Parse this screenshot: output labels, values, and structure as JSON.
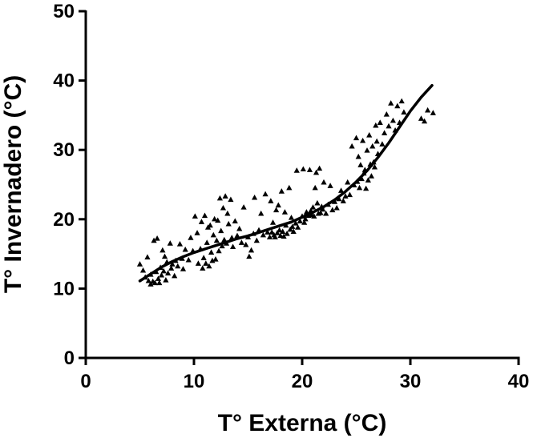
{
  "chart_data": {
    "type": "scatter",
    "title": "",
    "xlabel": "T° Externa (°C)",
    "ylabel": "T° Invernadero (°C)",
    "xlim": [
      0,
      40
    ],
    "ylim": [
      0,
      50
    ],
    "xticks": [
      "0",
      "10",
      "20",
      "30",
      "40"
    ],
    "yticks": [
      "0",
      "10",
      "20",
      "30",
      "40",
      "50"
    ],
    "grid": false,
    "legend": "none",
    "marker": "triangle",
    "marker_color": "#000000",
    "series": [
      {
        "kind": "scatter",
        "points": [
          [
            5.0,
            13.5
          ],
          [
            5.3,
            12.6
          ],
          [
            5.5,
            11.6
          ],
          [
            5.7,
            14.5
          ],
          [
            5.8,
            11.1
          ],
          [
            6.0,
            10.6
          ],
          [
            6.0,
            12.0
          ],
          [
            6.2,
            11.0
          ],
          [
            6.3,
            16.9
          ],
          [
            6.4,
            10.8
          ],
          [
            6.5,
            12.4
          ],
          [
            6.6,
            17.2
          ],
          [
            6.7,
            11.4
          ],
          [
            6.8,
            10.8
          ],
          [
            6.9,
            13.0
          ],
          [
            7.0,
            11.9
          ],
          [
            7.1,
            15.5
          ],
          [
            7.2,
            12.5
          ],
          [
            7.3,
            14.6
          ],
          [
            7.4,
            11.2
          ],
          [
            7.5,
            13.8
          ],
          [
            7.6,
            12.2
          ],
          [
            7.8,
            16.5
          ],
          [
            7.9,
            12.9
          ],
          [
            8.0,
            13.5
          ],
          [
            8.2,
            11.8
          ],
          [
            8.3,
            14.0
          ],
          [
            8.5,
            13.2
          ],
          [
            8.7,
            16.4
          ],
          [
            8.9,
            14.3
          ],
          [
            9.0,
            12.8
          ],
          [
            9.2,
            15.6
          ],
          [
            9.5,
            14.1
          ],
          [
            9.7,
            17.3
          ],
          [
            9.9,
            15.4
          ],
          [
            10.1,
            20.4
          ],
          [
            10.3,
            18.0
          ],
          [
            10.4,
            13.6
          ],
          [
            10.6,
            15.7
          ],
          [
            10.7,
            19.6
          ],
          [
            10.8,
            12.9
          ],
          [
            10.9,
            14.4
          ],
          [
            11.0,
            20.5
          ],
          [
            11.1,
            13.6
          ],
          [
            11.2,
            16.6
          ],
          [
            11.3,
            18.8
          ],
          [
            11.4,
            13.2
          ],
          [
            11.5,
            19.1
          ],
          [
            11.6,
            15.2
          ],
          [
            11.7,
            14.0
          ],
          [
            11.8,
            17.7
          ],
          [
            11.9,
            20.0
          ],
          [
            12.0,
            14.2
          ],
          [
            12.1,
            16.9
          ],
          [
            12.2,
            19.8
          ],
          [
            12.3,
            15.4
          ],
          [
            12.4,
            23.0
          ],
          [
            12.5,
            18.3
          ],
          [
            12.6,
            16.1
          ],
          [
            12.7,
            21.6
          ],
          [
            12.8,
            17.0
          ],
          [
            12.9,
            23.3
          ],
          [
            13.0,
            16.5
          ],
          [
            13.1,
            20.8
          ],
          [
            13.2,
            19.3
          ],
          [
            13.4,
            22.8
          ],
          [
            13.5,
            17.3
          ],
          [
            13.6,
            16.0
          ],
          [
            13.8,
            19.7
          ],
          [
            14.0,
            17.6
          ],
          [
            14.2,
            18.6
          ],
          [
            14.4,
            16.6
          ],
          [
            14.6,
            21.7
          ],
          [
            14.8,
            16.3
          ],
          [
            15.0,
            17.4
          ],
          [
            15.1,
            14.6
          ],
          [
            15.3,
            15.5
          ],
          [
            15.5,
            17.9
          ],
          [
            15.6,
            23.1
          ],
          [
            15.8,
            16.9
          ],
          [
            16.0,
            18.4
          ],
          [
            16.2,
            20.8
          ],
          [
            16.4,
            17.7
          ],
          [
            16.6,
            23.6
          ],
          [
            16.8,
            18.1
          ],
          [
            17.0,
            17.4
          ],
          [
            17.1,
            22.6
          ],
          [
            17.2,
            18.1
          ],
          [
            17.3,
            19.5
          ],
          [
            17.4,
            17.7
          ],
          [
            17.5,
            17.4
          ],
          [
            17.6,
            21.3
          ],
          [
            17.7,
            18.0
          ],
          [
            17.8,
            22.0
          ],
          [
            17.9,
            18.4
          ],
          [
            18.0,
            17.6
          ],
          [
            18.1,
            24.0
          ],
          [
            18.2,
            18.2
          ],
          [
            18.3,
            17.5
          ],
          [
            18.4,
            21.0
          ],
          [
            18.5,
            19.1
          ],
          [
            18.6,
            17.9
          ],
          [
            18.8,
            24.5
          ],
          [
            18.9,
            18.5
          ],
          [
            19.0,
            20.2
          ],
          [
            19.1,
            18.9
          ],
          [
            19.2,
            18.2
          ],
          [
            19.4,
            19.4
          ],
          [
            19.5,
            27.0
          ],
          [
            19.6,
            18.8
          ],
          [
            19.8,
            19.7
          ],
          [
            20.0,
            20.4
          ],
          [
            20.1,
            27.2
          ],
          [
            20.2,
            19.5
          ],
          [
            20.3,
            20.0
          ],
          [
            20.4,
            21.0
          ],
          [
            20.6,
            20.5
          ],
          [
            20.7,
            27.1
          ],
          [
            20.8,
            21.2
          ],
          [
            20.9,
            20.6
          ],
          [
            21.0,
            21.7
          ],
          [
            21.1,
            20.4
          ],
          [
            21.2,
            24.5
          ],
          [
            21.3,
            26.7
          ],
          [
            21.4,
            22.3
          ],
          [
            21.5,
            20.8
          ],
          [
            21.6,
            27.3
          ],
          [
            21.7,
            20.9
          ],
          [
            21.8,
            21.8
          ],
          [
            21.9,
            21.4
          ],
          [
            22.0,
            25.3
          ],
          [
            22.2,
            20.8
          ],
          [
            22.4,
            22.1
          ],
          [
            22.6,
            24.8
          ],
          [
            22.8,
            21.3
          ],
          [
            23.0,
            22.5
          ],
          [
            23.2,
            21.6
          ],
          [
            23.4,
            22.9
          ],
          [
            23.6,
            24.1
          ],
          [
            23.8,
            22.6
          ],
          [
            24.0,
            23.3
          ],
          [
            24.2,
            25.3
          ],
          [
            24.4,
            23.5
          ],
          [
            24.6,
            30.5
          ],
          [
            24.8,
            24.9
          ],
          [
            25.0,
            31.7
          ],
          [
            25.1,
            25.4
          ],
          [
            25.2,
            29.0
          ],
          [
            25.3,
            24.5
          ],
          [
            25.4,
            27.8
          ],
          [
            25.5,
            25.8
          ],
          [
            25.6,
            31.3
          ],
          [
            25.7,
            26.6
          ],
          [
            25.8,
            27.1
          ],
          [
            25.9,
            24.4
          ],
          [
            26.0,
            29.9
          ],
          [
            26.1,
            25.6
          ],
          [
            26.2,
            32.1
          ],
          [
            26.3,
            27.9
          ],
          [
            26.4,
            26.2
          ],
          [
            26.5,
            30.5
          ],
          [
            26.6,
            28.2
          ],
          [
            26.7,
            27.5
          ],
          [
            26.8,
            33.5
          ],
          [
            26.9,
            31.2
          ],
          [
            27.0,
            29.4
          ],
          [
            27.2,
            33.9
          ],
          [
            27.4,
            30.8
          ],
          [
            27.6,
            32.4
          ],
          [
            27.8,
            35.1
          ],
          [
            28.0,
            33.4
          ],
          [
            28.2,
            36.7
          ],
          [
            28.4,
            34.2
          ],
          [
            28.6,
            32.8
          ],
          [
            28.8,
            36.3
          ],
          [
            29.0,
            33.9
          ],
          [
            29.2,
            37.0
          ],
          [
            29.4,
            35.4
          ],
          [
            31.0,
            34.5
          ],
          [
            31.3,
            34.1
          ],
          [
            31.6,
            35.7
          ],
          [
            32.1,
            35.3
          ]
        ]
      },
      {
        "kind": "fit-line",
        "x": [
          5.0,
          6.0,
          7.0,
          8.0,
          9.0,
          10.0,
          11.0,
          12.0,
          13.0,
          14.0,
          15.0,
          16.0,
          17.0,
          18.0,
          19.0,
          20.0,
          21.0,
          22.0,
          23.0,
          24.0,
          25.0,
          26.0,
          27.0,
          28.0,
          29.0,
          30.0,
          31.0,
          32.0
        ],
        "y": [
          11.1,
          12.1,
          13.1,
          13.9,
          14.6,
          15.2,
          15.7,
          16.2,
          16.7,
          17.2,
          17.6,
          18.1,
          18.6,
          19.1,
          19.6,
          20.3,
          21.0,
          21.8,
          22.8,
          24.0,
          25.4,
          27.0,
          28.9,
          31.0,
          33.3,
          35.6,
          37.6,
          39.3
        ]
      }
    ]
  }
}
